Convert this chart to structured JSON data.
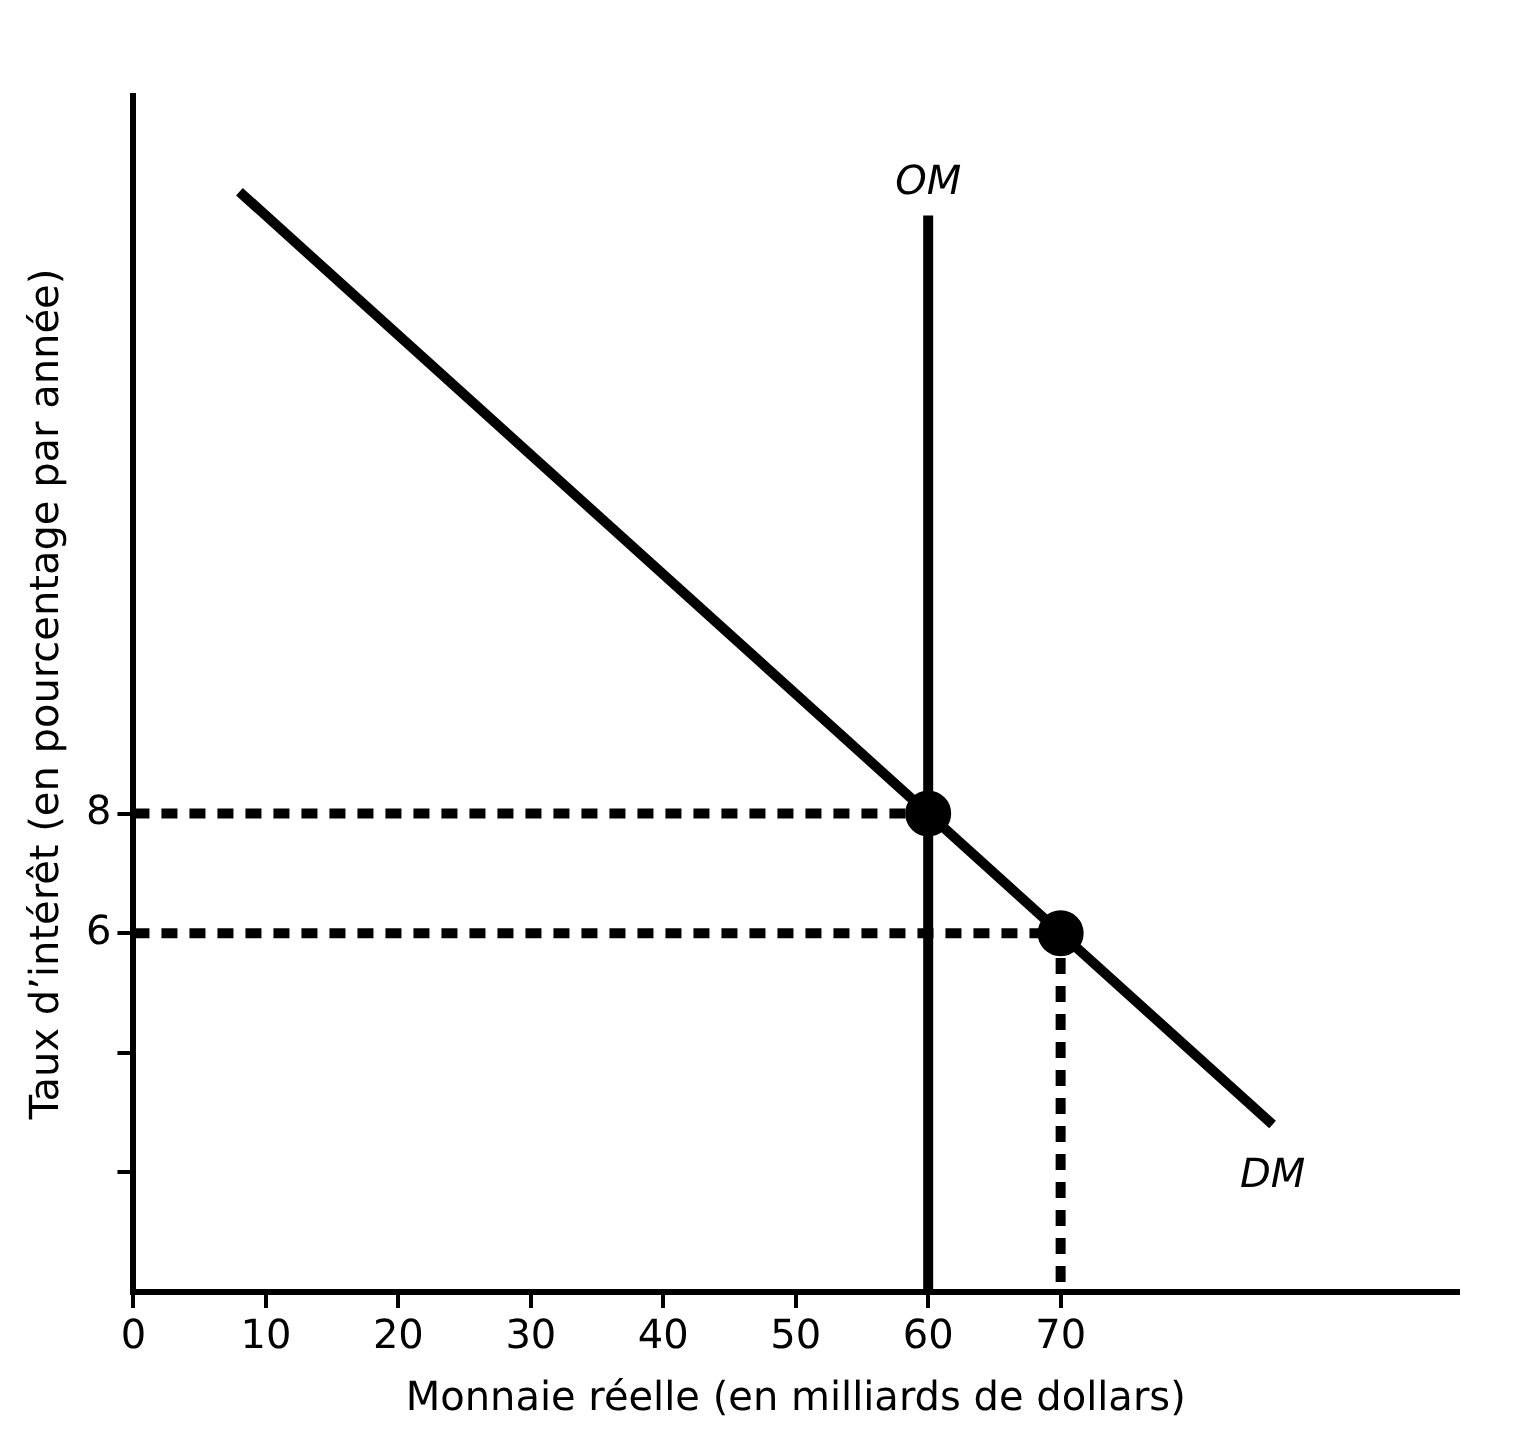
{
  "chart_data": {
    "type": "line",
    "xlabel": "Monnaie réelle (en milliards de dollars)",
    "ylabel": "Taux d’intérêt (en pourcentage par année)",
    "xlim": [
      0,
      100
    ],
    "ylim": [
      0,
      20
    ],
    "xticks": [
      0,
      10,
      20,
      30,
      40,
      50,
      60,
      70
    ],
    "yticks": [
      {
        "value": 2,
        "label": null
      },
      {
        "value": 4,
        "label": null
      },
      6,
      8
    ],
    "grid": false,
    "legend": false,
    "series": [
      {
        "name": "DM",
        "color": "#000000",
        "x": [
          8,
          86
        ],
        "values": [
          18.4,
          2.8
        ],
        "marker": "none",
        "line_style": "solid"
      },
      {
        "name": "OM",
        "color": "#000000",
        "x": [
          60,
          60
        ],
        "values": [
          0,
          18
        ],
        "marker": "none",
        "line_style": "solid"
      },
      {
        "color": "#000000",
        "x": [
          0,
          60
        ],
        "values": [
          8,
          8
        ],
        "marker": "none",
        "line_style": "dashed"
      },
      {
        "color": "#000000",
        "x": [
          0,
          70,
          70
        ],
        "values": [
          6,
          6,
          0
        ],
        "marker": "none",
        "line_style": "dashed"
      },
      {
        "type": "scatter",
        "color": "#000000",
        "x": [
          60,
          70
        ],
        "values": [
          8,
          6
        ],
        "marker": "circle"
      }
    ]
  }
}
